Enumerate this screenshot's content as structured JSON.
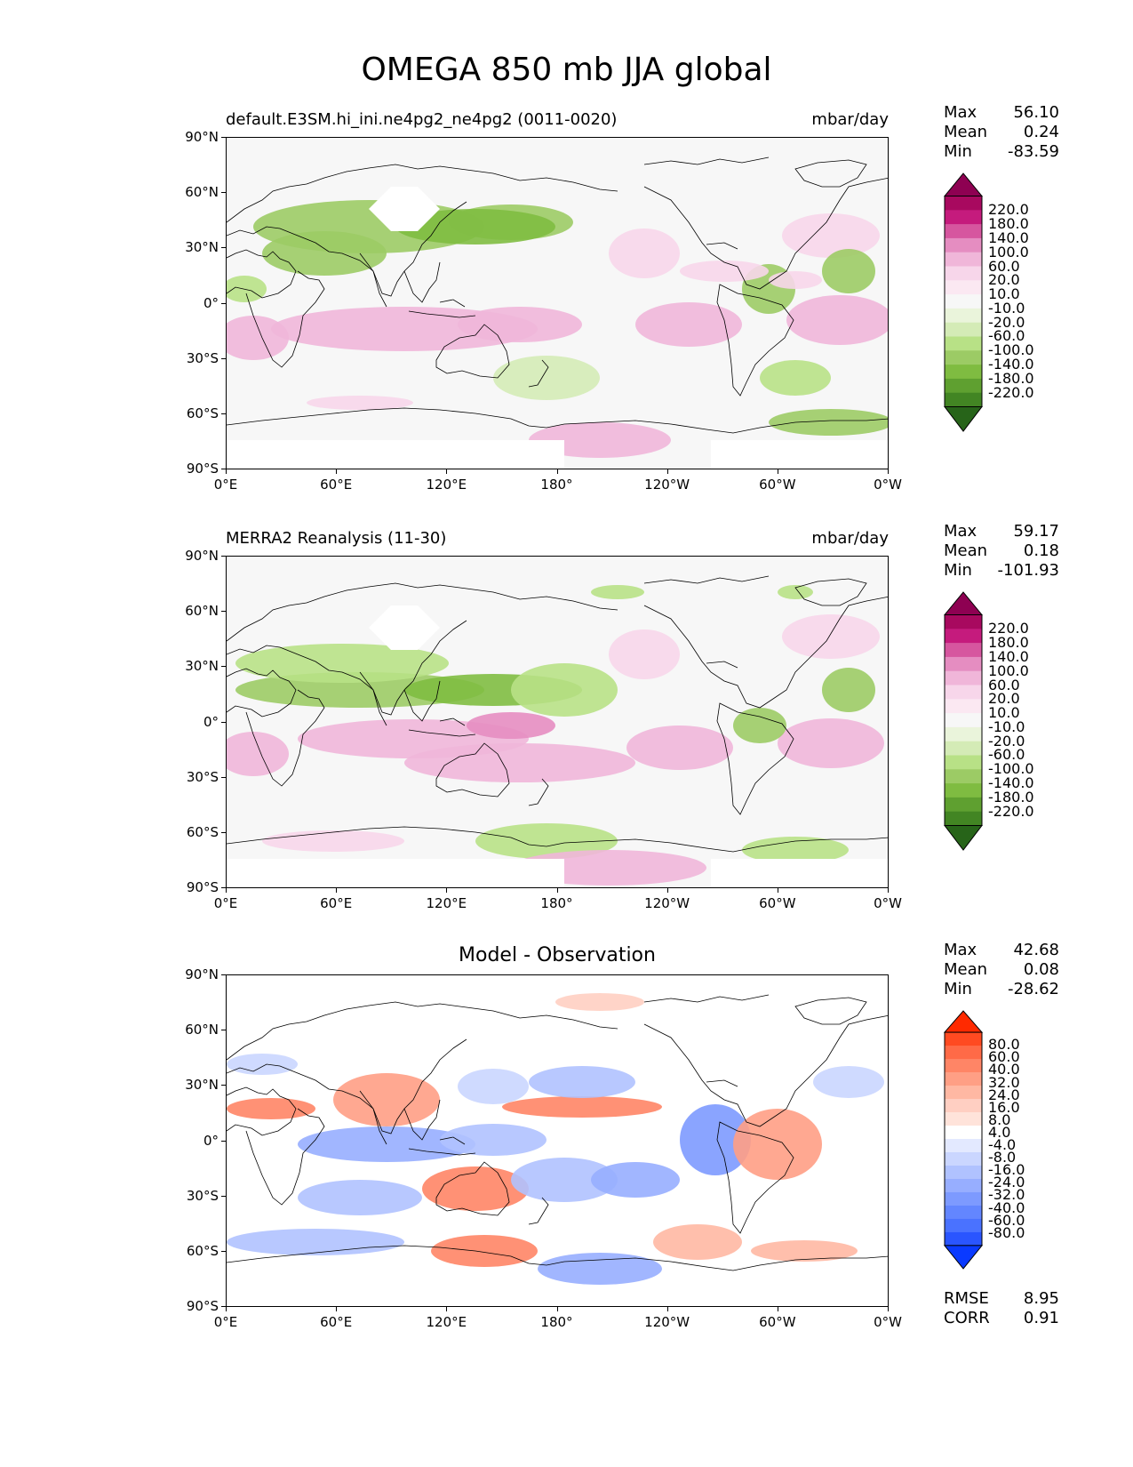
{
  "title": "OMEGA 850 mb JJA global",
  "panels": [
    {
      "left_label": "default.E3SM.hi_ini.ne4pg2_ne4pg2 (0011-0020)",
      "right_label": "mbar/day",
      "center_label": "",
      "stats": [
        {
          "label": "Max",
          "value": "56.10"
        },
        {
          "label": "Mean",
          "value": "0.24"
        },
        {
          "label": "Min",
          "value": "-83.59"
        }
      ],
      "colorbar": {
        "labels": [
          "220.0",
          "180.0",
          "140.0",
          "100.0",
          "60.0",
          "20.0",
          "10.0",
          "-10.0",
          "-20.0",
          "-60.0",
          "-100.0",
          "-140.0",
          "-180.0",
          "-220.0"
        ],
        "colors": [
          "#8e0152",
          "#a8095f",
          "#c51b7d",
          "#d6569f",
          "#e58dc1",
          "#f0b6d9",
          "#f7d6ea",
          "#fbe8f2",
          "#f7f7f7",
          "#eaf4db",
          "#d4ebb6",
          "#b8e186",
          "#9ccb65",
          "#7fbc41",
          "#5fa030",
          "#428523",
          "#276419"
        ]
      }
    },
    {
      "left_label": "MERRA2 Reanalysis (11-30)",
      "right_label": "mbar/day",
      "center_label": "",
      "stats": [
        {
          "label": "Max",
          "value": "59.17"
        },
        {
          "label": "Mean",
          "value": "0.18"
        },
        {
          "label": "Min",
          "value": "-101.93"
        }
      ],
      "colorbar": {
        "labels": [
          "220.0",
          "180.0",
          "140.0",
          "100.0",
          "60.0",
          "20.0",
          "10.0",
          "-10.0",
          "-20.0",
          "-60.0",
          "-100.0",
          "-140.0",
          "-180.0",
          "-220.0"
        ],
        "colors": [
          "#8e0152",
          "#a8095f",
          "#c51b7d",
          "#d6569f",
          "#e58dc1",
          "#f0b6d9",
          "#f7d6ea",
          "#fbe8f2",
          "#f7f7f7",
          "#eaf4db",
          "#d4ebb6",
          "#b8e186",
          "#9ccb65",
          "#7fbc41",
          "#5fa030",
          "#428523",
          "#276419"
        ]
      }
    },
    {
      "left_label": "",
      "right_label": "",
      "center_label": "Model - Observation",
      "stats": [
        {
          "label": "Max",
          "value": "42.68"
        },
        {
          "label": "Mean",
          "value": "0.08"
        },
        {
          "label": "Min",
          "value": "-28.62"
        }
      ],
      "extra_stats": [
        {
          "label": "RMSE",
          "value": "8.95"
        },
        {
          "label": "CORR",
          "value": "0.91"
        }
      ],
      "colorbar": {
        "labels": [
          "80.0",
          "60.0",
          "40.0",
          "32.0",
          "24.0",
          "16.0",
          "8.0",
          "4.0",
          "-4.0",
          "-8.0",
          "-16.0",
          "-24.0",
          "-32.0",
          "-40.0",
          "-60.0",
          "-80.0"
        ],
        "colors": [
          "#ff2a00",
          "#ff4a21",
          "#ff6a47",
          "#ff8566",
          "#ff9f85",
          "#ffb8a3",
          "#ffcfc2",
          "#ffe3da",
          "#ffffff",
          "#e3e9ff",
          "#cad6ff",
          "#b0c2ff",
          "#97aeff",
          "#7d9aff",
          "#6386ff",
          "#4a72ff",
          "#2a55ff",
          "#0a3aff"
        ]
      }
    }
  ],
  "axes": {
    "lat_ticks": [
      "90°N",
      "60°N",
      "30°N",
      "0°",
      "30°S",
      "60°S",
      "90°S"
    ],
    "lon_ticks": [
      "0°E",
      "60°E",
      "120°E",
      "180°",
      "120°W",
      "60°W",
      "0°W"
    ]
  }
}
